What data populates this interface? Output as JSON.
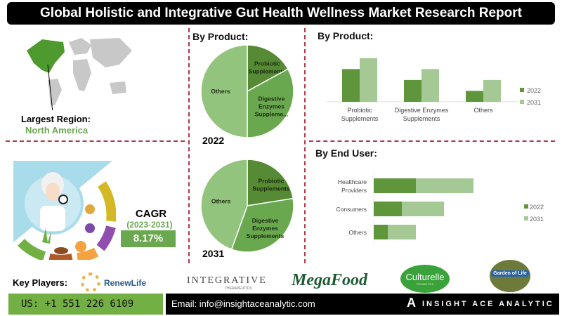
{
  "title": "Global Holistic and Integrative Gut Health Wellness Market Research Report",
  "region": {
    "label": "Largest Region:",
    "value": "North America"
  },
  "cagr": {
    "label": "CAGR",
    "period": "(2023-2031)",
    "value": "8.17%"
  },
  "colors": {
    "dark_green": "#5f963c",
    "light_green": "#a5c994",
    "accent_green": "#6aa84f",
    "divider": "#b03a48"
  },
  "chart_data": [
    {
      "type": "pie",
      "title": "By Product:",
      "year_label": "2022",
      "categories": [
        "Probiotic Supplements",
        "Digestive Enzymes Suppleme...",
        "Others"
      ],
      "values": [
        17,
        33,
        50
      ]
    },
    {
      "type": "pie",
      "year_label": "2031",
      "categories": [
        "Probiotic Supplements",
        "Digestive Enzymes Supplements",
        "Others"
      ],
      "values": [
        22.5,
        33,
        44.5
      ]
    },
    {
      "type": "bar",
      "title": "By Product:",
      "categories": [
        [
          "Probiotic",
          "Supplements"
        ],
        [
          "Digestive Enzymes",
          "Supplements"
        ],
        [
          "Others"
        ]
      ],
      "series": [
        {
          "name": "2022",
          "values": [
            3,
            2,
            1
          ]
        },
        {
          "name": "2031",
          "values": [
            4,
            3,
            2
          ]
        }
      ],
      "ylim": [
        0,
        4.5
      ],
      "legend": "right"
    },
    {
      "type": "bar",
      "orientation": "horizontal",
      "stacked": true,
      "title": "By End User:",
      "categories": [
        [
          "Healthcare",
          "Providers"
        ],
        [
          "Consumers"
        ],
        [
          "Others"
        ]
      ],
      "series": [
        {
          "name": "2022",
          "values": [
            3,
            2,
            1
          ]
        },
        {
          "name": "2031",
          "values": [
            4.1,
            3,
            2
          ]
        }
      ],
      "legend": "right"
    }
  ],
  "key_players": {
    "label": "Key Players:",
    "logos": [
      "RenewLife",
      "INTEGRATIVE",
      "THERAPEUTICS",
      "MegaFood",
      "Culturelle",
      "PROBIOTICS",
      "Garden of Life"
    ]
  },
  "footer": {
    "phone": "US: +1 551 226 6109",
    "email": "Email: info@insightaceanalytic.com",
    "brand": "INSIGHT ACE ANALYTIC"
  }
}
